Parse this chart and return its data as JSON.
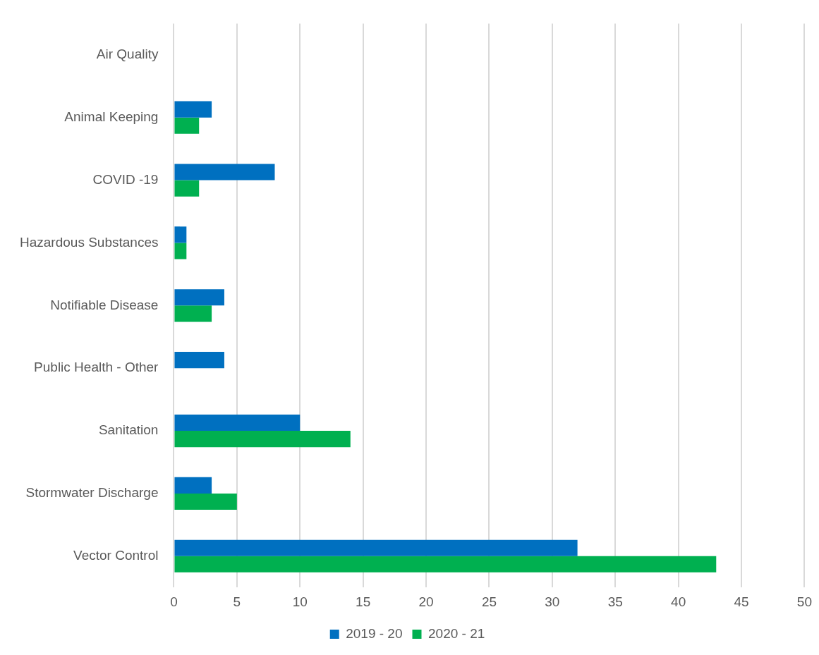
{
  "chart_data": {
    "type": "bar",
    "orientation": "horizontal",
    "categories": [
      "Air Quality",
      "Animal Keeping",
      "COVID -19",
      "Hazardous Substances",
      "Notifiable Disease",
      "Public Health - Other",
      "Sanitation",
      "Stormwater Discharge",
      "Vector Control"
    ],
    "series": [
      {
        "name": "2019 - 20",
        "color": "#0070c0",
        "values": [
          0,
          3,
          8,
          1,
          4,
          4,
          10,
          3,
          32
        ]
      },
      {
        "name": "2020 - 21",
        "color": "#00b050",
        "values": [
          0,
          2,
          2,
          1,
          3,
          0,
          14,
          5,
          43
        ]
      }
    ],
    "xlim": [
      0,
      50
    ],
    "xticks": [
      0,
      5,
      10,
      15,
      20,
      25,
      30,
      35,
      40,
      45,
      50
    ],
    "grid": "x",
    "legend": "bottom"
  }
}
